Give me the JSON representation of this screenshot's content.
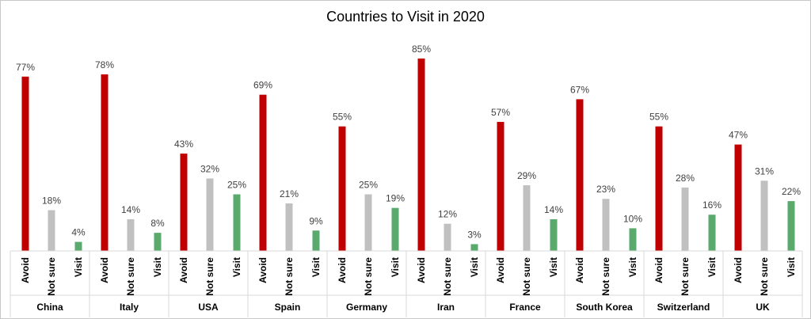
{
  "chart_data": {
    "type": "bar",
    "title": "Countries to Visit in 2020",
    "xlabel": "",
    "ylabel": "",
    "ylim": [
      0,
      100
    ],
    "grid": false,
    "legend": "none",
    "value_format": "percent",
    "categories": [
      "China",
      "Italy",
      "USA",
      "Spain",
      "Germany",
      "Iran",
      "France",
      "South Korea",
      "Switzerland",
      "UK"
    ],
    "series": [
      {
        "name": "Avoid",
        "color": "#c00000",
        "values": [
          77,
          78,
          43,
          69,
          55,
          85,
          57,
          67,
          55,
          47
        ]
      },
      {
        "name": "Not sure",
        "color": "#c0c0c0",
        "values": [
          18,
          14,
          32,
          21,
          25,
          12,
          29,
          23,
          28,
          31
        ]
      },
      {
        "name": "Visit",
        "color": "#5aaa6e",
        "values": [
          4,
          8,
          25,
          9,
          19,
          3,
          14,
          10,
          16,
          22
        ]
      }
    ],
    "axis_color": "#d9d9d9"
  }
}
